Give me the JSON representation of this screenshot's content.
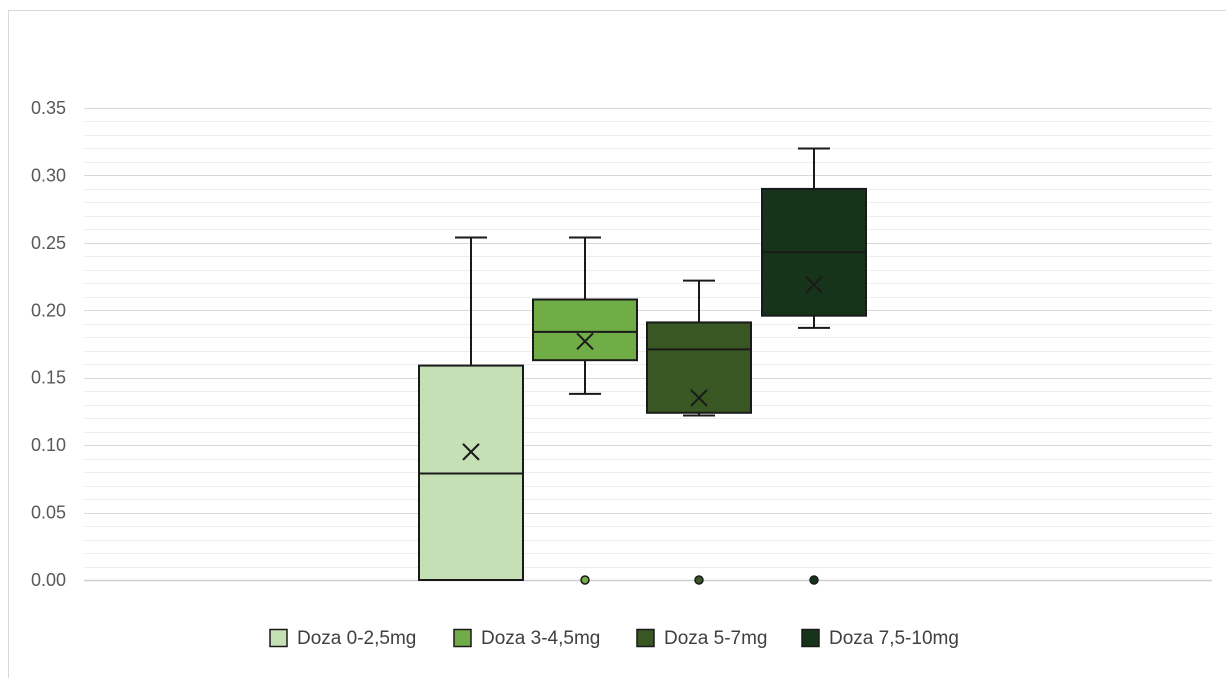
{
  "chart_data": {
    "type": "boxplot",
    "title": "",
    "xlabel": "",
    "ylabel": "",
    "ylim": [
      0,
      0.35
    ],
    "y_tick_step": 0.05,
    "y_minor_step": 0.01,
    "y_tick_labels": [
      "0.00",
      "0.05",
      "0.10",
      "0.15",
      "0.20",
      "0.25",
      "0.30",
      "0.35"
    ],
    "grid": true,
    "legend_position": "bottom",
    "series": [
      {
        "name": "Doza 0-2,5mg",
        "color": "#c5e0b4",
        "stroke": "#1a1a1a",
        "whisker_min": 0.0,
        "q1": 0.0,
        "median": 0.079,
        "q3": 0.159,
        "whisker_max": 0.254,
        "mean": 0.095,
        "outliers": []
      },
      {
        "name": "Doza 3-4,5mg",
        "color": "#70ad47",
        "stroke": "#1a1a1a",
        "whisker_min": 0.138,
        "q1": 0.163,
        "median": 0.184,
        "q3": 0.208,
        "whisker_max": 0.254,
        "mean": 0.177,
        "outliers": [
          0.0
        ]
      },
      {
        "name": "Doza 5-7mg",
        "color": "#385723",
        "stroke": "#1a1a1a",
        "whisker_min": 0.122,
        "q1": 0.124,
        "median": 0.171,
        "q3": 0.191,
        "whisker_max": 0.222,
        "mean": 0.135,
        "outliers": [
          0.0
        ]
      },
      {
        "name": "Doza 7,5-10mg",
        "color": "#15341a",
        "stroke": "#1a1a1a",
        "whisker_min": 0.187,
        "q1": 0.196,
        "median": 0.243,
        "q3": 0.29,
        "whisker_max": 0.32,
        "mean": 0.219,
        "outliers": [
          0.0
        ]
      }
    ]
  }
}
